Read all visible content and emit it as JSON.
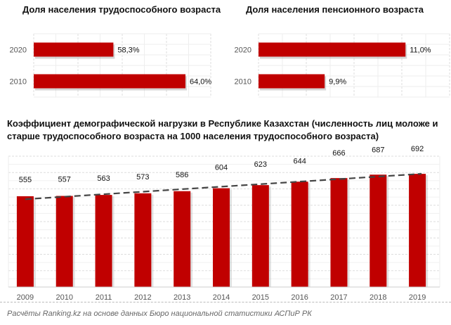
{
  "chart_data": [
    {
      "type": "bar",
      "orientation": "horizontal",
      "title": "Доля населения трудоспособного возраста",
      "categories": [
        "2020",
        "2010"
      ],
      "values": [
        58.3,
        64.0
      ],
      "labels": [
        "58,3%",
        "64,0%"
      ],
      "xlim": [
        52,
        66
      ],
      "color": "#C00000",
      "grid": true
    },
    {
      "type": "bar",
      "orientation": "horizontal",
      "title": "Доля населения пенсионного возраста",
      "categories": [
        "2020",
        "2010"
      ],
      "values": [
        11.0,
        9.9
      ],
      "labels": [
        "11,0%",
        "9,9%"
      ],
      "xlim": [
        9,
        11.6
      ],
      "color": "#C00000",
      "grid": true
    },
    {
      "type": "bar",
      "title": "Коэффициент демографической нагрузки в Республике Казахстан (численность лиц моложе и старше трудоспособного возраста на 1000 населения трудоспособного возраста)",
      "title_lines": [
        "Коэффициент демографической нагрузки в Республике Казахстан (численность лиц моложе и",
        "старше трудоспособного возраста на 1000 населения трудоспособного возраста)"
      ],
      "categories": [
        "2009",
        "2010",
        "2011",
        "2012",
        "2013",
        "2014",
        "2015",
        "2016",
        "2017",
        "2018",
        "2019"
      ],
      "values": [
        555,
        557,
        563,
        573,
        586,
        604,
        623,
        644,
        666,
        687,
        692
      ],
      "ylim": [
        0,
        800
      ],
      "color": "#C00000",
      "trendline": "linear dashed",
      "trend_color": "#444444",
      "grid": true
    }
  ],
  "source": "Расчёты Ranking.kz на основе данных Бюро национальной статистики АСПиР РК"
}
